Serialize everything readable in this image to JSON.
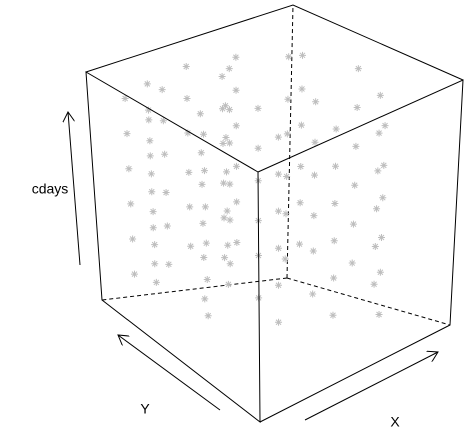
{
  "chart_data": {
    "type": "scatter3d",
    "xlabel": "X",
    "ylabel": "Y",
    "zlabel": "cdays",
    "color": "#bebebe",
    "xlim": [
      0,
      1
    ],
    "ylim": [
      0,
      1
    ],
    "zlim": [
      0,
      1
    ],
    "x": [
      0.1,
      0.1,
      0.1,
      0.1,
      0.1,
      0.1,
      0.2,
      0.2,
      0.2,
      0.2,
      0.2,
      0.2,
      0.3,
      0.3,
      0.3,
      0.3,
      0.3,
      0.3,
      0.15,
      0.15,
      0.15,
      0.15,
      0.15,
      0.15,
      0.4,
      0.4,
      0.4,
      0.4,
      0.4,
      0.4,
      0.5,
      0.5,
      0.5,
      0.5,
      0.5,
      0.5,
      0.35,
      0.35,
      0.35,
      0.35,
      0.35,
      0.35,
      0.6,
      0.6,
      0.6,
      0.6,
      0.6,
      0.6,
      0.7,
      0.7,
      0.7,
      0.7,
      0.7,
      0.7,
      0.25,
      0.25,
      0.25,
      0.25,
      0.25,
      0.25,
      0.8,
      0.8,
      0.8,
      0.8,
      0.8,
      0.8,
      0.9,
      0.9,
      0.9,
      0.9,
      0.9,
      0.9,
      0.55,
      0.55,
      0.55,
      0.55,
      0.55,
      0.55,
      0.45,
      0.45,
      0.45,
      0.45,
      0.45,
      0.45,
      0.65,
      0.65,
      0.65,
      0.65,
      0.65,
      0.65,
      0.85,
      0.85,
      0.85,
      0.85,
      0.85,
      0.85,
      0.05,
      0.05,
      0.05,
      0.05,
      0.05,
      0.05,
      0.75,
      0.75,
      0.75,
      0.75,
      0.75,
      0.75,
      0.95,
      0.95,
      0.95,
      0.95,
      0.95,
      0.95,
      0.3,
      0.3,
      0.3,
      0.3,
      0.3,
      0.3
    ],
    "y": [
      0.9,
      0.9,
      0.9,
      0.9,
      0.9,
      0.9,
      0.8,
      0.8,
      0.8,
      0.8,
      0.8,
      0.8,
      0.7,
      0.7,
      0.7,
      0.7,
      0.7,
      0.7,
      0.5,
      0.5,
      0.5,
      0.5,
      0.5,
      0.5,
      0.9,
      0.9,
      0.9,
      0.9,
      0.9,
      0.9,
      0.6,
      0.6,
      0.6,
      0.6,
      0.6,
      0.6,
      0.3,
      0.3,
      0.3,
      0.3,
      0.3,
      0.3,
      0.85,
      0.85,
      0.85,
      0.85,
      0.85,
      0.85,
      0.5,
      0.5,
      0.5,
      0.5,
      0.5,
      0.5,
      0.95,
      0.95,
      0.95,
      0.95,
      0.95,
      0.95,
      0.7,
      0.7,
      0.7,
      0.7,
      0.7,
      0.7,
      0.9,
      0.9,
      0.9,
      0.9,
      0.9,
      0.9,
      0.2,
      0.2,
      0.2,
      0.2,
      0.2,
      0.2,
      0.75,
      0.75,
      0.75,
      0.75,
      0.75,
      0.75,
      0.95,
      0.95,
      0.95,
      0.95,
      0.95,
      0.95,
      0.3,
      0.3,
      0.3,
      0.3,
      0.3,
      0.3,
      0.7,
      0.7,
      0.7,
      0.7,
      0.7,
      0.7,
      0.15,
      0.15,
      0.15,
      0.15,
      0.15,
      0.15,
      0.55,
      0.55,
      0.55,
      0.55,
      0.55,
      0.55,
      0.55,
      0.55,
      0.55,
      0.55,
      0.55,
      0.55
    ],
    "z": [
      0.15,
      0.3,
      0.45,
      0.6,
      0.75,
      0.9,
      0.22,
      0.38,
      0.52,
      0.68,
      0.82,
      0.95,
      0.1,
      0.27,
      0.41,
      0.57,
      0.7,
      0.86,
      0.15,
      0.3,
      0.45,
      0.6,
      0.75,
      0.9,
      0.22,
      0.38,
      0.52,
      0.68,
      0.82,
      0.95,
      0.1,
      0.27,
      0.41,
      0.57,
      0.7,
      0.86,
      0.15,
      0.3,
      0.45,
      0.6,
      0.75,
      0.9,
      0.22,
      0.38,
      0.52,
      0.68,
      0.82,
      0.95,
      0.1,
      0.27,
      0.41,
      0.57,
      0.7,
      0.86,
      0.15,
      0.3,
      0.45,
      0.6,
      0.75,
      0.9,
      0.22,
      0.38,
      0.52,
      0.68,
      0.82,
      0.95,
      0.1,
      0.27,
      0.41,
      0.57,
      0.7,
      0.86,
      0.15,
      0.3,
      0.45,
      0.6,
      0.75,
      0.9,
      0.22,
      0.38,
      0.52,
      0.68,
      0.82,
      0.95,
      0.1,
      0.27,
      0.41,
      0.57,
      0.7,
      0.86,
      0.15,
      0.3,
      0.45,
      0.6,
      0.75,
      0.9,
      0.22,
      0.38,
      0.52,
      0.68,
      0.82,
      0.95,
      0.1,
      0.27,
      0.41,
      0.57,
      0.7,
      0.86,
      0.15,
      0.3,
      0.45,
      0.6,
      0.75,
      0.9,
      0.22,
      0.38,
      0.52,
      0.68,
      0.82,
      0.95
    ]
  }
}
